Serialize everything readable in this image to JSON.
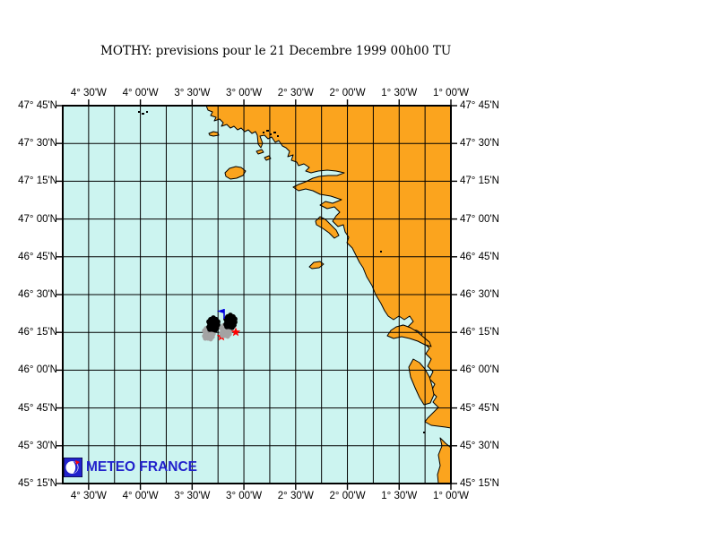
{
  "title": "MOTHY: previsions pour le 21 Decembre 1999 00h00 TU",
  "branding": {
    "logo_label": "METEO FRANCE"
  },
  "colors": {
    "sea": "#CCF4F0",
    "land": "#FBA41E",
    "coast": "#000000",
    "grid": "#000000",
    "logo_blue": "#2222CC",
    "star_red": "#FF0000",
    "flag_blue": "#0000E0",
    "particle_black": "#000000",
    "particle_gray": "#A3A3A3"
  },
  "axes": {
    "lon_labels": [
      "4° 30'W",
      "4° 00'W",
      "3° 30'W",
      "3° 00'W",
      "2° 30'W",
      "2° 00'W",
      "1° 30'W",
      "1° 00'W"
    ],
    "lat_labels": [
      "47° 45'N",
      "47° 30'N",
      "47° 15'N",
      "47° 00'N",
      "46° 45'N",
      "46° 30'N",
      "46° 15'N",
      "46° 00'N",
      "45° 45'N",
      "45° 30'N",
      "45° 15'N"
    ]
  },
  "map": {
    "markers": {
      "slicks": [
        {
          "id": "oil-slick-left",
          "gray": [
            163,
            253
          ],
          "black": [
            168,
            243
          ],
          "star": [
            177,
            258
          ]
        },
        {
          "id": "oil-slick-right",
          "gray": [
            182,
            250
          ],
          "black": [
            187,
            240
          ],
          "star": [
            193,
            253
          ],
          "flag": [
            180,
            238
          ]
        }
      ]
    }
  }
}
